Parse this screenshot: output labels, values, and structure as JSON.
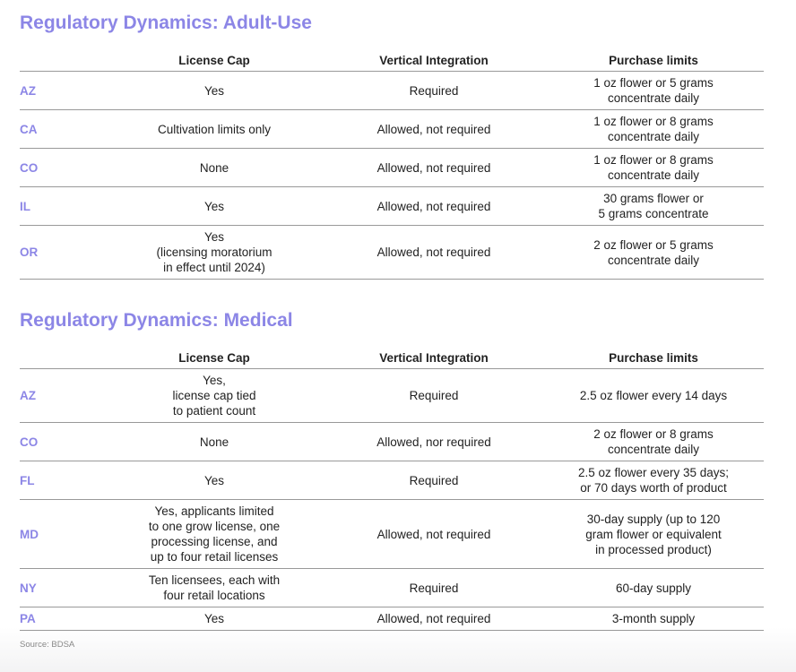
{
  "sections": [
    {
      "title": "Regulatory Dynamics: Adult-Use",
      "columns": [
        "License Cap",
        "Vertical Integration",
        "Purchase limits"
      ],
      "rows": [
        [
          "AZ",
          "Yes",
          "Required",
          "1 oz flower or 5 grams\nconcentrate daily"
        ],
        [
          "CA",
          "Cultivation limits only",
          "Allowed, not required",
          "1 oz flower or 8 grams\nconcentrate daily"
        ],
        [
          "CO",
          "None",
          "Allowed, not required",
          "1 oz flower or 8 grams\nconcentrate daily"
        ],
        [
          "IL",
          "Yes",
          "Allowed, not required",
          "30 grams flower or\n5 grams concentrate"
        ],
        [
          "OR",
          "Yes\n(licensing moratorium\nin effect until 2024)",
          "Allowed, not required",
          "2 oz flower or 5 grams\nconcentrate daily"
        ]
      ]
    },
    {
      "title": "Regulatory Dynamics: Medical",
      "columns": [
        "License Cap",
        "Vertical Integration",
        "Purchase limits"
      ],
      "rows": [
        [
          "AZ",
          "Yes,\nlicense cap tied\nto patient count",
          "Required",
          "2.5 oz flower every 14 days"
        ],
        [
          "CO",
          "None",
          "Allowed, nor required",
          "2 oz flower or 8 grams\nconcentrate daily"
        ],
        [
          "FL",
          "Yes",
          "Required",
          "2.5 oz flower every 35 days;\nor 70 days worth of product"
        ],
        [
          "MD",
          "Yes, applicants limited\nto one grow license, one\nprocessing license, and\nup to four retail licenses",
          "Allowed, not required",
          "30-day supply (up to 120\ngram flower or equivalent\nin processed product)"
        ],
        [
          "NY",
          "Ten licensees, each with\nfour retail locations",
          "Required",
          "60-day supply"
        ],
        [
          "PA",
          "Yes",
          "Allowed, not required",
          "3-month supply"
        ]
      ]
    }
  ],
  "source": "Source: BDSA"
}
